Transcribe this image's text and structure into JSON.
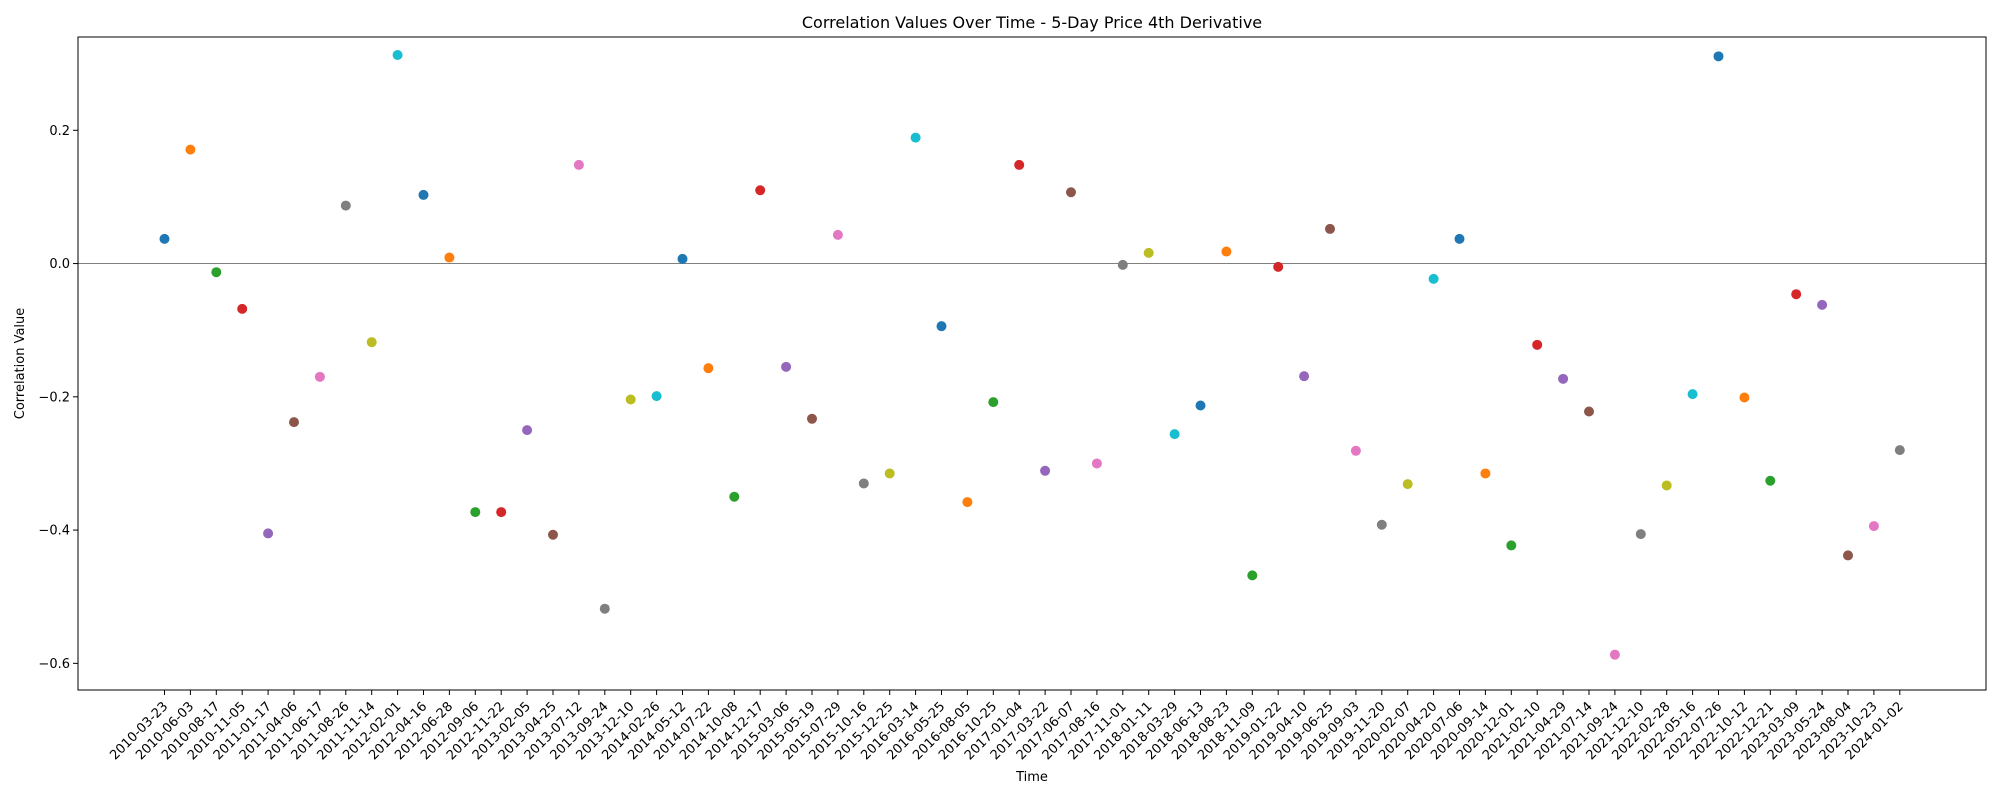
{
  "chart_data": {
    "type": "scatter",
    "title": "Correlation Values Over Time - 5-Day Price 4th Derivative",
    "xlabel": "Time",
    "ylabel": "Correlation Value",
    "ylim": [
      -0.64,
      0.34
    ],
    "yticks": [
      -0.6,
      -0.4,
      -0.2,
      0.0,
      0.2
    ],
    "ytick_labels": [
      "−0.6",
      "−0.4",
      "−0.2",
      "0.0",
      "0.2"
    ],
    "grid": false,
    "reference_line_y": 0.0,
    "palette": [
      "#1f77b4",
      "#ff7f0e",
      "#2ca02c",
      "#d62728",
      "#9467bd",
      "#8c564b",
      "#e377c2",
      "#7f7f7f",
      "#bcbd22",
      "#17becf"
    ],
    "x": [
      "2010-03-23",
      "2010-06-03",
      "2010-08-17",
      "2010-11-05",
      "2011-01-17",
      "2011-04-06",
      "2011-06-17",
      "2011-08-26",
      "2011-11-14",
      "2012-02-01",
      "2012-04-16",
      "2012-06-28",
      "2012-09-06",
      "2012-11-22",
      "2013-02-05",
      "2013-04-25",
      "2013-07-12",
      "2013-09-24",
      "2013-12-10",
      "2014-02-26",
      "2014-05-12",
      "2014-07-22",
      "2014-10-08",
      "2014-12-17",
      "2015-03-06",
      "2015-05-19",
      "2015-07-29",
      "2015-10-16",
      "2015-12-25",
      "2016-03-14",
      "2016-05-25",
      "2016-08-05",
      "2016-10-25",
      "2017-01-04",
      "2017-03-22",
      "2017-06-07",
      "2017-08-16",
      "2017-11-01",
      "2018-01-11",
      "2018-03-29",
      "2018-06-13",
      "2018-08-23",
      "2018-11-09",
      "2019-01-22",
      "2019-04-10",
      "2019-06-25",
      "2019-09-03",
      "2019-11-20",
      "2020-02-07",
      "2020-04-20",
      "2020-07-06",
      "2020-09-14",
      "2020-12-01",
      "2021-02-10",
      "2021-04-29",
      "2021-07-14",
      "2021-09-24",
      "2021-12-10",
      "2022-02-28",
      "2022-05-16",
      "2022-07-26",
      "2022-10-12",
      "2022-12-21",
      "2023-03-09",
      "2023-05-24",
      "2023-08-04",
      "2023-10-23",
      "2024-01-02"
    ],
    "y": [
      0.037,
      0.171,
      -0.013,
      -0.068,
      -0.405,
      -0.238,
      -0.17,
      0.087,
      -0.118,
      0.313,
      0.103,
      0.009,
      -0.373,
      -0.373,
      -0.25,
      -0.407,
      0.148,
      -0.518,
      -0.204,
      -0.199,
      0.007,
      -0.157,
      -0.35,
      0.11,
      -0.155,
      -0.233,
      0.043,
      -0.33,
      -0.315,
      0.189,
      -0.094,
      -0.358,
      -0.208,
      0.148,
      -0.311,
      0.107,
      -0.3,
      -0.002,
      0.016,
      -0.256,
      -0.213,
      0.018,
      -0.468,
      -0.005,
      -0.169,
      0.052,
      -0.281,
      -0.392,
      -0.331,
      -0.023,
      0.037,
      -0.315,
      -0.423,
      -0.122,
      -0.173,
      -0.222,
      -0.587,
      -0.406,
      -0.333,
      -0.196,
      0.311,
      -0.201,
      -0.326,
      -0.046,
      -0.062,
      -0.438,
      -0.394,
      -0.28
    ]
  }
}
